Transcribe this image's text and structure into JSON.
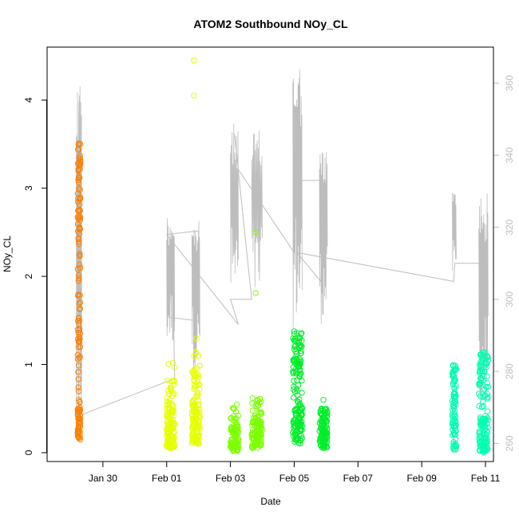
{
  "chart_data": {
    "type": "scatter",
    "title": "ATOM2 Southbound NOy_CL",
    "xlabel": "Date",
    "ylabel": "NOy_CL",
    "x_axis": {
      "type": "date",
      "range": [
        "2017-01-28T06:00",
        "2017-02-11T06:00"
      ],
      "ticks": [
        {
          "date": "2017-01-30",
          "label": "Jan 30"
        },
        {
          "date": "2017-02-01",
          "label": "Feb 01"
        },
        {
          "date": "2017-02-03",
          "label": "Feb 03"
        },
        {
          "date": "2017-02-05",
          "label": "Feb 05"
        },
        {
          "date": "2017-02-07",
          "label": "Feb 07"
        },
        {
          "date": "2017-02-09",
          "label": "Feb 09"
        },
        {
          "date": "2017-02-11",
          "label": "Feb 11"
        }
      ]
    },
    "y_axis_left": {
      "range": [
        -0.1,
        4.6
      ],
      "ticks": [
        0,
        1,
        2,
        3,
        4
      ],
      "labels": [
        "0",
        "1",
        "2",
        "3",
        "4"
      ]
    },
    "y_axis_right": {
      "color": "#bdbdbd",
      "range": [
        255,
        370
      ],
      "ticks": [
        260,
        280,
        300,
        320,
        340,
        360
      ],
      "labels": [
        "260",
        "280",
        "300",
        "320",
        "340",
        "360"
      ]
    },
    "grid": false,
    "legend": "none",
    "series": [
      {
        "kind": "points",
        "color": "#ff7f00",
        "clusters": [
          {
            "start": "2017-01-29T05:00",
            "end": "2017-01-29T07:00",
            "n": 150,
            "ranges": [
              [
                0.15,
                0.5,
                0.3
              ],
              [
                0.5,
                2.3,
                0.35
              ],
              [
                2.3,
                3.55,
                0.35
              ]
            ]
          }
        ]
      },
      {
        "kind": "points",
        "color": "#e6ff00",
        "clusters": [
          {
            "start": "2017-02-01T00:00",
            "end": "2017-02-01T06:00",
            "n": 130,
            "ranges": [
              [
                0.05,
                0.5,
                0.7
              ],
              [
                0.5,
                0.85,
                0.25
              ],
              [
                0.85,
                1.05,
                0.05
              ]
            ]
          },
          {
            "start": "2017-02-01T19:00",
            "end": "2017-02-02T01:00",
            "n": 130,
            "ranges": [
              [
                0.1,
                0.5,
                0.7
              ],
              [
                0.5,
                1.0,
                0.25
              ],
              [
                1.0,
                1.4,
                0.05
              ]
            ],
            "extra": [
              {
                "date": "2017-02-01T20:30",
                "value": 4.45
              },
              {
                "date": "2017-02-01T20:30",
                "value": 4.05
              }
            ]
          }
        ]
      },
      {
        "kind": "points",
        "color": "#7cff00",
        "clusters": [
          {
            "start": "2017-02-03T00:00",
            "end": "2017-02-03T06:00",
            "n": 90,
            "ranges": [
              [
                0.02,
                0.3,
                0.85
              ],
              [
                0.3,
                0.55,
                0.15
              ]
            ]
          },
          {
            "start": "2017-02-03T16:00",
            "end": "2017-02-04T00:00",
            "n": 110,
            "ranges": [
              [
                0.05,
                0.4,
                0.8
              ],
              [
                0.4,
                0.62,
                0.2
              ]
            ],
            "extra": [
              {
                "date": "2017-02-03T19:00",
                "value": 2.5
              },
              {
                "date": "2017-02-03T19:00",
                "value": 1.81
              }
            ]
          }
        ]
      },
      {
        "kind": "points",
        "color": "#00ee2a",
        "clusters": [
          {
            "start": "2017-02-04T23:00",
            "end": "2017-02-05T06:00",
            "n": 160,
            "ranges": [
              [
                0.1,
                0.5,
                0.5
              ],
              [
                0.5,
                1.0,
                0.3
              ],
              [
                1.0,
                1.38,
                0.2
              ]
            ]
          },
          {
            "start": "2017-02-05T19:00",
            "end": "2017-02-06T01:00",
            "n": 110,
            "ranges": [
              [
                0.05,
                0.35,
                0.8
              ],
              [
                0.35,
                0.5,
                0.2
              ]
            ],
            "extra": [
              {
                "date": "2017-02-05T22:00",
                "value": 0.6
              }
            ]
          }
        ]
      },
      {
        "kind": "points",
        "color": "#00ffb0",
        "clusters": [
          {
            "start": "2017-02-09T23:00",
            "end": "2017-02-10T02:00",
            "n": 90,
            "ranges": [
              [
                0.0,
                0.3,
                0.25
              ],
              [
                0.3,
                1.0,
                0.75
              ]
            ]
          },
          {
            "start": "2017-02-10T19:00",
            "end": "2017-02-11T02:00",
            "n": 150,
            "ranges": [
              [
                0.0,
                0.4,
                0.55
              ],
              [
                0.4,
                0.8,
                0.15
              ],
              [
                0.8,
                1.15,
                0.3
              ]
            ]
          }
        ]
      },
      {
        "kind": "line",
        "color": "#bdbdbd",
        "axis": "right",
        "base": [
          {
            "date": "2017-01-29T04:00",
            "value": 262
          },
          {
            "date": "2017-01-29T06:00",
            "value": 355
          },
          {
            "date": "2017-01-29T08:00",
            "value": 268
          },
          {
            "date": "2017-02-01T06:00",
            "value": 278
          },
          {
            "date": "2017-02-01T04:00",
            "value": 318
          },
          {
            "date": "2017-02-01T02:00",
            "value": 295
          },
          {
            "date": "2017-02-02T00:00",
            "value": 294
          },
          {
            "date": "2017-02-02T00:00",
            "value": 319
          },
          {
            "date": "2017-02-01T00:00",
            "value": 318
          },
          {
            "date": "2017-02-03T06:00",
            "value": 293
          },
          {
            "date": "2017-02-03T00:00",
            "value": 300
          },
          {
            "date": "2017-02-03T16:00",
            "value": 300
          },
          {
            "date": "2017-02-03T03:00",
            "value": 346
          },
          {
            "date": "2017-02-03T06:00",
            "value": 336
          },
          {
            "date": "2017-02-05T00:00",
            "value": 313
          },
          {
            "date": "2017-02-05T01:00",
            "value": 333
          },
          {
            "date": "2017-02-06T00:00",
            "value": 333
          },
          {
            "date": "2017-02-05T20:00",
            "value": 305
          },
          {
            "date": "2017-02-05T02:00",
            "value": 313
          },
          {
            "date": "2017-02-10T00:00",
            "value": 305
          },
          {
            "date": "2017-02-10T01:00",
            "value": 310
          },
          {
            "date": "2017-02-11T00:00",
            "value": 310
          }
        ],
        "bursts": [
          {
            "start": "2017-01-29T04:00",
            "end": "2017-01-29T08:00",
            "low": 258,
            "high": 362,
            "n": 30
          },
          {
            "start": "2017-02-01T00:00",
            "end": "2017-02-01T06:00",
            "low": 287,
            "high": 324,
            "n": 24
          },
          {
            "start": "2017-02-01T19:00",
            "end": "2017-02-02T01:00",
            "low": 280,
            "high": 322,
            "n": 24
          },
          {
            "start": "2017-02-03T00:00",
            "end": "2017-02-03T06:00",
            "low": 298,
            "high": 349,
            "n": 20
          },
          {
            "start": "2017-02-03T16:00",
            "end": "2017-02-04T00:00",
            "low": 298,
            "high": 347,
            "n": 24
          },
          {
            "start": "2017-02-04T23:00",
            "end": "2017-02-05T06:00",
            "low": 292,
            "high": 366,
            "n": 30
          },
          {
            "start": "2017-02-05T19:00",
            "end": "2017-02-06T01:00",
            "low": 293,
            "high": 342,
            "n": 24
          },
          {
            "start": "2017-02-09T23:00",
            "end": "2017-02-10T02:00",
            "low": 305,
            "high": 331,
            "n": 12
          },
          {
            "start": "2017-02-10T19:00",
            "end": "2017-02-11T02:00",
            "low": 270,
            "high": 330,
            "n": 28
          }
        ]
      }
    ]
  }
}
